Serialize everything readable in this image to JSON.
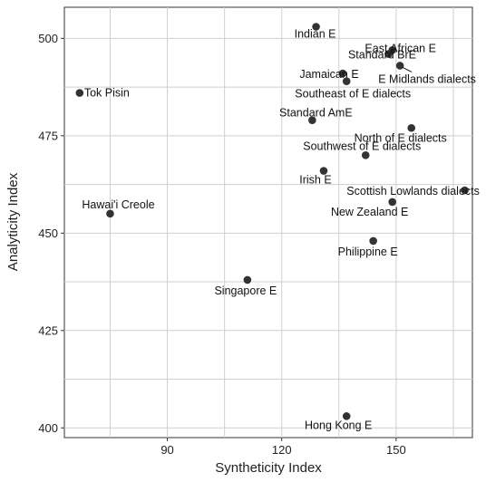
{
  "chart_data": {
    "type": "scatter",
    "title": "",
    "xlabel": "Syntheticity Index",
    "ylabel": "Analyticity Index",
    "xlim": [
      63,
      170
    ],
    "ylim": [
      397.5,
      508
    ],
    "x_ticks": [
      90,
      120,
      150
    ],
    "y_ticks": [
      400,
      425,
      450,
      475,
      500
    ],
    "grid": true,
    "points": [
      {
        "label": "Indian E",
        "x": 129,
        "y": 503
      },
      {
        "label": "East African E",
        "x": 149,
        "y": 497
      },
      {
        "label": "Standard BrE",
        "x": 148,
        "y": 496
      },
      {
        "label": "E Midlands dialects",
        "x": 151,
        "y": 493
      },
      {
        "label": "Jamaican E",
        "x": 136,
        "y": 491
      },
      {
        "label": "Southeast of E dialects",
        "x": 137,
        "y": 489
      },
      {
        "label": "Tok Pisin",
        "x": 67,
        "y": 486
      },
      {
        "label": "Standard AmE",
        "x": 128,
        "y": 479
      },
      {
        "label": "North of E dialects",
        "x": 154,
        "y": 477
      },
      {
        "label": "Southwest of E dialects",
        "x": 142,
        "y": 470
      },
      {
        "label": "Irish E",
        "x": 131,
        "y": 466
      },
      {
        "label": "Scottish Lowlands dialects",
        "x": 168,
        "y": 461
      },
      {
        "label": "New Zealand E",
        "x": 149,
        "y": 458
      },
      {
        "label": "Hawai'i Creole",
        "x": 75,
        "y": 455
      },
      {
        "label": "Philippine E",
        "x": 144,
        "y": 448
      },
      {
        "label": "Singapore E",
        "x": 111,
        "y": 438
      },
      {
        "label": "Hong Kong E",
        "x": 137,
        "y": 403
      }
    ]
  }
}
